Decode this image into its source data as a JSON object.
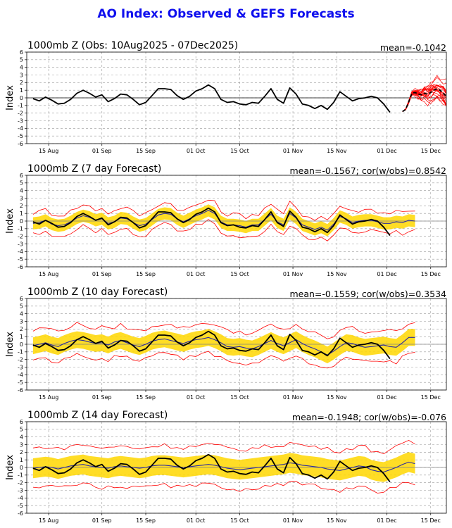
{
  "title": "AO Index: Observed & GEFS Forecasts",
  "colors": {
    "title": "#1010ee",
    "observed": "#000000",
    "spread": "#ffd700",
    "mean": "#2a2aa0",
    "members": "#ff0000",
    "grid": "#999999",
    "zero": "#808080"
  },
  "chart_data": [
    {
      "type": "line",
      "title": "1000mb Z (Obs: 10Aug2025 - 07Dec2025)",
      "stats": "mean=-0.1042",
      "ylabel": "Index",
      "xlabel": "",
      "ylim": [
        -6,
        6
      ],
      "y_ticks": [
        -6,
        -5,
        -4,
        -3,
        -2,
        -1,
        0,
        1,
        2,
        3,
        4,
        5,
        6
      ],
      "xlim": [
        "2025-08-08",
        "2025-12-20"
      ],
      "x_tick_labels": [
        "15 Aug",
        "01 Sep",
        "15 Sep",
        "01 Oct",
        "15 Oct",
        "01 Nov",
        "15 Nov",
        "01 Dec",
        "15 Dec"
      ],
      "x_tick_dates": [
        "2025-08-15",
        "2025-09-01",
        "2025-09-15",
        "2025-10-01",
        "2025-10-15",
        "2025-11-01",
        "2025-11-15",
        "2025-12-01",
        "2025-12-15"
      ],
      "grid": true,
      "series": [
        {
          "role": "observed",
          "start_date": "2025-08-10",
          "step_days": 2,
          "values": [
            -0.1,
            -0.4,
            0.1,
            -0.3,
            -0.8,
            -0.7,
            -0.2,
            0.6,
            1.0,
            0.6,
            0.1,
            0.4,
            -0.5,
            -0.1,
            0.5,
            0.4,
            -0.2,
            -0.9,
            -0.6,
            0.3,
            1.2,
            1.2,
            1.1,
            0.3,
            -0.2,
            0.2,
            0.9,
            1.2,
            1.7,
            1.2,
            -0.2,
            -0.6,
            -0.5,
            -0.8,
            -0.9,
            -0.6,
            -0.7,
            0.2,
            1.2,
            -0.2,
            -0.7,
            1.3,
            0.5,
            -0.8,
            -1.0,
            -1.4,
            -1.0,
            -1.5,
            -0.6,
            0.8,
            0.2,
            -0.4,
            -0.1,
            0.0,
            0.2,
            0.0,
            -0.8,
            -1.9
          ]
        },
        {
          "role": "ensemble_mean",
          "start_date": "2025-12-06",
          "step_days": 1,
          "values": [
            -1.8,
            -1.5,
            -0.5,
            0.6,
            0.7,
            0.5,
            0.4,
            0.6,
            0.5,
            0.7,
            1.0,
            1.2,
            1.0,
            0.6,
            0.2
          ]
        }
      ]
    },
    {
      "type": "line",
      "title": "1000mb Z (7 day Forecast)",
      "stats": "mean=-0.1567; cor(w/obs)=0.8542",
      "ylabel": "Index",
      "xlabel": "",
      "ylim": [
        -6,
        6
      ],
      "grid": true,
      "series": [
        {
          "role": "observed",
          "start_date": "2025-08-10",
          "step_days": 2,
          "values": [
            -0.1,
            -0.4,
            0.1,
            -0.3,
            -0.8,
            -0.7,
            -0.2,
            0.6,
            1.0,
            0.6,
            0.1,
            0.4,
            -0.5,
            -0.1,
            0.5,
            0.4,
            -0.2,
            -0.9,
            -0.6,
            0.3,
            1.2,
            1.2,
            1.1,
            0.3,
            -0.2,
            0.2,
            0.9,
            1.2,
            1.7,
            1.2,
            -0.2,
            -0.6,
            -0.5,
            -0.8,
            -0.9,
            -0.6,
            -0.7,
            0.2,
            1.2,
            -0.2,
            -0.7,
            1.3,
            0.5,
            -0.8,
            -1.0,
            -1.4,
            -1.0,
            -1.5,
            -0.6,
            0.8,
            0.2,
            -0.4,
            -0.1,
            0.0,
            0.2,
            0.0,
            -0.8,
            -1.9
          ]
        },
        {
          "role": "ensemble_mean",
          "start_date": "2025-08-10",
          "step_days": 2,
          "values": [
            -0.3,
            -0.2,
            0.1,
            -0.4,
            -0.6,
            -0.5,
            -0.1,
            0.4,
            0.7,
            0.5,
            0.1,
            0.3,
            -0.3,
            -0.1,
            0.4,
            0.3,
            -0.2,
            -0.6,
            -0.4,
            0.2,
            0.8,
            1.0,
            0.9,
            0.3,
            -0.1,
            0.3,
            0.7,
            1.0,
            1.4,
            1.0,
            -0.1,
            -0.5,
            -0.5,
            -0.6,
            -0.8,
            -0.5,
            -0.5,
            0.2,
            0.9,
            -0.1,
            -0.5,
            1.0,
            0.4,
            -0.5,
            -0.8,
            -1.1,
            -0.8,
            -1.2,
            -0.4,
            0.6,
            0.3,
            -0.2,
            0.0,
            0.1,
            0.1,
            -0.1,
            -0.3,
            -0.3,
            -0.1,
            -0.2,
            0.1,
            0.0
          ]
        },
        {
          "role": "spread",
          "half_width": 0.8
        },
        {
          "role": "members",
          "offset": 1.4
        }
      ]
    },
    {
      "type": "line",
      "title": "1000mb Z (10 day Forecast)",
      "stats": "mean=-0.1559; cor(w/obs)=0.3534",
      "ylabel": "Index",
      "xlabel": "",
      "ylim": [
        -6,
        6
      ],
      "grid": true,
      "series": [
        {
          "role": "observed",
          "start_date": "2025-08-10",
          "step_days": 2,
          "values": [
            -0.1,
            -0.4,
            0.1,
            -0.3,
            -0.8,
            -0.7,
            -0.2,
            0.6,
            1.0,
            0.6,
            0.1,
            0.4,
            -0.5,
            -0.1,
            0.5,
            0.4,
            -0.2,
            -0.9,
            -0.6,
            0.3,
            1.2,
            1.2,
            1.1,
            0.3,
            -0.2,
            0.2,
            0.9,
            1.2,
            1.7,
            1.2,
            -0.2,
            -0.6,
            -0.5,
            -0.8,
            -0.9,
            -0.6,
            -0.7,
            0.2,
            1.2,
            -0.2,
            -0.7,
            1.3,
            0.5,
            -0.8,
            -1.0,
            -1.4,
            -1.0,
            -1.5,
            -0.6,
            0.8,
            0.2,
            -0.4,
            -0.1,
            0.0,
            0.2,
            0.0,
            -0.8,
            -1.9
          ]
        },
        {
          "role": "ensemble_mean",
          "start_date": "2025-08-10",
          "step_days": 2,
          "values": [
            -0.2,
            0.0,
            0.2,
            -0.1,
            -0.3,
            0.1,
            0.4,
            0.6,
            0.5,
            0.3,
            0.1,
            0.2,
            -0.1,
            0.3,
            0.5,
            0.2,
            -0.1,
            -0.3,
            0.0,
            0.4,
            0.6,
            0.7,
            0.5,
            0.3,
            0.1,
            0.4,
            0.6,
            0.7,
            0.9,
            0.6,
            0.2,
            -0.3,
            -0.4,
            -0.3,
            -0.5,
            -0.6,
            -0.3,
            0.1,
            0.5,
            0.1,
            -0.2,
            0.2,
            0.6,
            0.1,
            -0.3,
            -0.6,
            -1.0,
            -1.4,
            -0.9,
            -0.3,
            0.2,
            0.1,
            -0.2,
            -0.4,
            -0.3,
            -0.2,
            -0.1,
            -0.3,
            -0.4,
            0.2,
            0.9,
            0.9
          ]
        },
        {
          "role": "spread",
          "half_width": 1.1
        },
        {
          "role": "members",
          "offset": 2.0
        }
      ]
    },
    {
      "type": "line",
      "title": "1000mb Z (14 day Forecast)",
      "stats": "mean=-0.1948; cor(w/obs)=-0.076",
      "ylabel": "Index",
      "xlabel": "",
      "ylim": [
        -6,
        6
      ],
      "grid": true,
      "series": [
        {
          "role": "observed",
          "start_date": "2025-08-10",
          "step_days": 2,
          "values": [
            -0.1,
            -0.4,
            0.1,
            -0.3,
            -0.8,
            -0.7,
            -0.2,
            0.6,
            1.0,
            0.6,
            0.1,
            0.4,
            -0.5,
            -0.1,
            0.5,
            0.4,
            -0.2,
            -0.9,
            -0.6,
            0.3,
            1.2,
            1.2,
            1.1,
            0.3,
            -0.2,
            0.2,
            0.9,
            1.2,
            1.7,
            1.2,
            -0.2,
            -0.6,
            -0.5,
            -0.8,
            -0.9,
            -0.6,
            -0.7,
            0.2,
            1.2,
            -0.2,
            -0.7,
            1.3,
            0.5,
            -0.8,
            -1.0,
            -1.4,
            -1.0,
            -1.5,
            -0.6,
            0.8,
            0.2,
            -0.4,
            -0.1,
            0.0,
            0.2,
            0.0,
            -0.8,
            -1.9
          ]
        },
        {
          "role": "ensemble_mean",
          "start_date": "2025-08-10",
          "step_days": 2,
          "values": [
            -0.1,
            0.0,
            0.1,
            0.0,
            -0.2,
            0.0,
            0.2,
            0.3,
            0.4,
            0.2,
            0.1,
            0.0,
            -0.1,
            0.1,
            0.2,
            0.1,
            0.0,
            -0.1,
            0.0,
            0.2,
            0.3,
            0.3,
            0.2,
            0.1,
            0.0,
            0.1,
            0.2,
            0.3,
            0.4,
            0.3,
            0.1,
            -0.1,
            -0.2,
            -0.3,
            -0.2,
            -0.1,
            0.0,
            0.1,
            0.2,
            0.3,
            0.4,
            0.6,
            0.5,
            0.3,
            0.2,
            0.1,
            0.0,
            -0.2,
            -0.3,
            -0.4,
            -0.2,
            0.0,
            0.2,
            0.1,
            -0.3,
            -0.5,
            -0.6,
            -0.3,
            0.0,
            0.4,
            0.7,
            0.5
          ]
        },
        {
          "role": "spread",
          "half_width": 1.3
        },
        {
          "role": "members",
          "offset": 2.6
        }
      ]
    }
  ]
}
